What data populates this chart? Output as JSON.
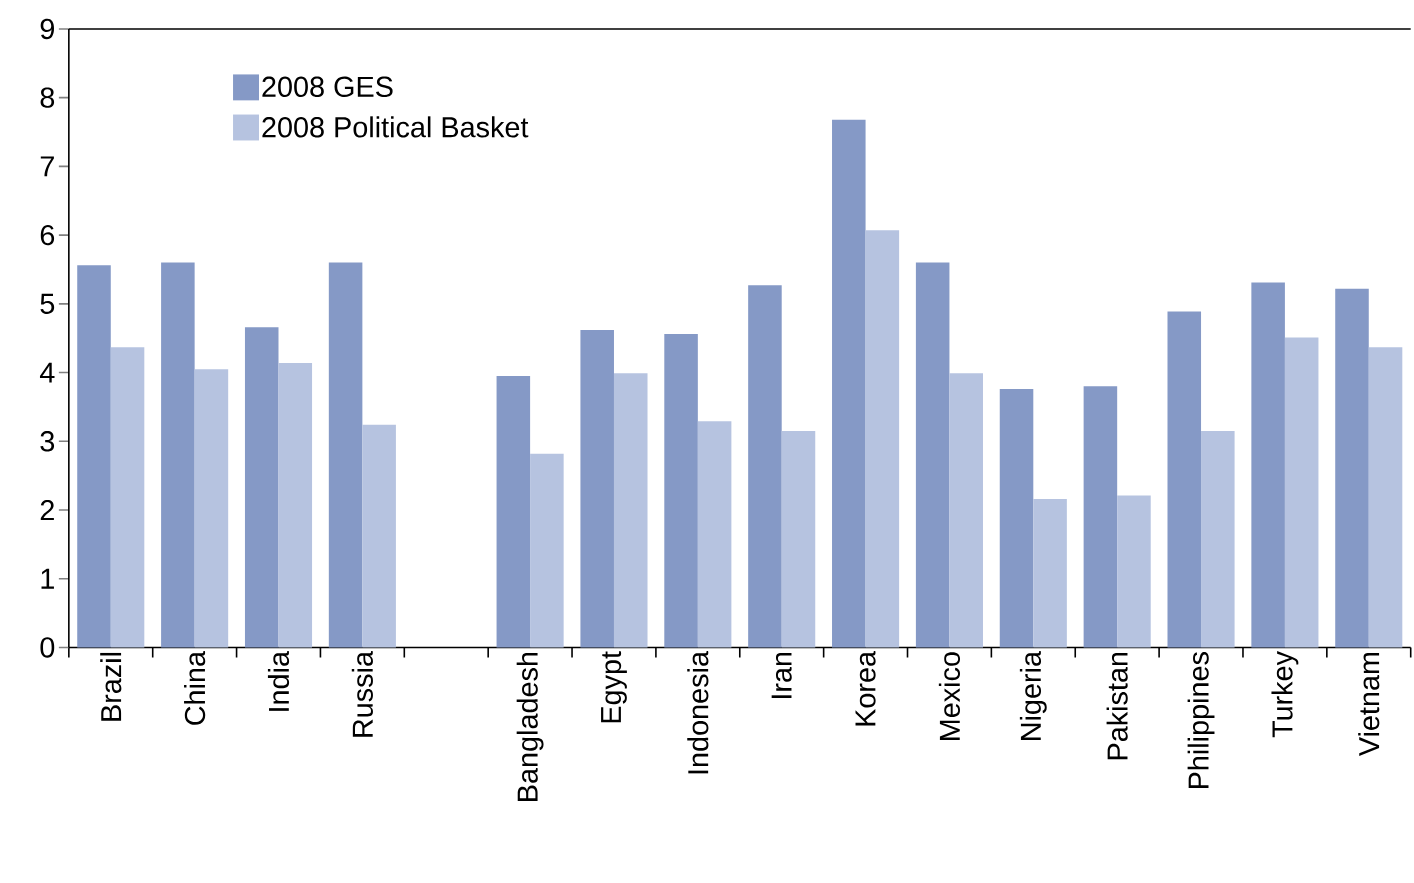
{
  "chart_data": {
    "type": "bar",
    "categories": [
      "Brazil",
      "China",
      "India",
      "Russia",
      null,
      "Bangladesh",
      "Egypt",
      "Indonesia",
      "Iran",
      "Korea",
      "Mexico",
      "Nigeria",
      "Pakistan",
      "Philippines",
      "Turkey",
      "Vietnam"
    ],
    "series": [
      {
        "name": "2008 GES",
        "color": "#8599c6",
        "values": [
          5.56,
          5.6,
          4.66,
          5.6,
          null,
          3.95,
          4.62,
          4.56,
          5.27,
          7.68,
          5.6,
          3.76,
          3.8,
          4.89,
          5.31,
          5.22
        ]
      },
      {
        "name": "2008 Political Basket",
        "color": "#b6c3e0",
        "values": [
          4.37,
          4.05,
          4.14,
          3.24,
          null,
          2.82,
          3.99,
          3.29,
          3.15,
          6.07,
          3.99,
          2.16,
          2.21,
          3.15,
          4.51,
          4.37
        ]
      }
    ],
    "ylim": [
      0,
      9
    ],
    "yticks": [
      0,
      1,
      2,
      3,
      4,
      5,
      6,
      7,
      8,
      9
    ],
    "grid": false,
    "legend": "top left"
  }
}
